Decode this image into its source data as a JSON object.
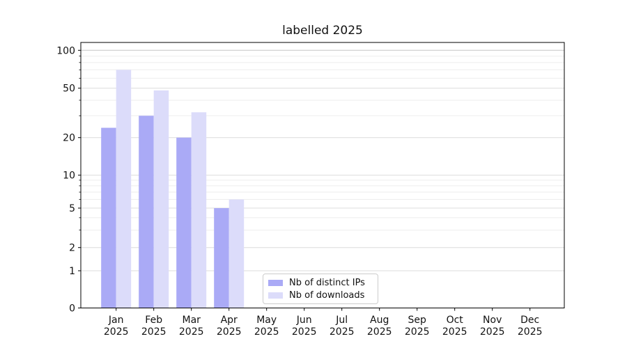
{
  "title": "labelled 2025",
  "colors": {
    "series_ips": "#aaaaf6",
    "series_downloads": "#dcdcfa",
    "grid_major": "#dcdcdc",
    "grid_top_major": "#c6c6c6",
    "grid_minor": "#eeeeee",
    "spine": "#000000",
    "tick_label": "#111111",
    "legend_border": "#cccccc",
    "background": "#ffffff"
  },
  "chart_data": {
    "type": "bar",
    "title": "labelled 2025",
    "categories": [
      "Jan",
      "Feb",
      "Mar",
      "Apr",
      "May",
      "Jun",
      "Jul",
      "Aug",
      "Sep",
      "Oct",
      "Nov",
      "Dec"
    ],
    "category_year_line": "2025",
    "series": [
      {
        "name": "Nb of distinct IPs",
        "color": "#aaaaf6",
        "values": [
          24,
          30,
          20,
          5,
          null,
          null,
          null,
          null,
          null,
          null,
          null,
          null
        ]
      },
      {
        "name": "Nb of downloads",
        "color": "#dcdcfa",
        "values": [
          70,
          48,
          32,
          6,
          null,
          null,
          null,
          null,
          null,
          null,
          null,
          null
        ]
      }
    ],
    "xlabel": "",
    "ylabel": "",
    "yscale": "asinh (log-like, linear near zero)",
    "yticks": [
      0,
      1,
      2,
      5,
      10,
      20,
      50,
      100
    ],
    "ytick_labels": [
      "0",
      "1",
      "2",
      "5",
      "10",
      "20",
      "50",
      "100"
    ],
    "yticks_minor": [
      3,
      4,
      6,
      7,
      8,
      9,
      30,
      40,
      60,
      70,
      80,
      90
    ],
    "ylim_top_value": 115,
    "grid": "horizontal major + minor gridlines",
    "legend_position": "lower center, inside axes",
    "bar_layout": "grouped, two bars per month, no bar borders"
  },
  "legend": {
    "items": [
      {
        "label": "Nb of distinct IPs",
        "color": "#aaaaf6"
      },
      {
        "label": "Nb of downloads",
        "color": "#dcdcfa"
      }
    ]
  }
}
